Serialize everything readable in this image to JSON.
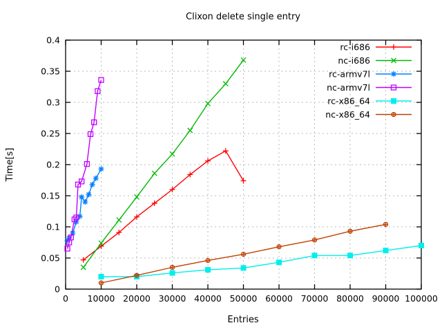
{
  "chart_data": {
    "type": "line",
    "title": "Clixon delete single entry",
    "xlabel": "Entries",
    "ylabel": "Time[s]",
    "xlim": [
      0,
      100000
    ],
    "ylim": [
      0,
      0.4
    ],
    "grid": true,
    "legend_position": "top-right-inside",
    "frame_color": "#000000",
    "grid_color": "#b9b9b9",
    "x_ticks": {
      "values": [
        0,
        10000,
        20000,
        30000,
        40000,
        50000,
        60000,
        70000,
        80000,
        90000,
        100000
      ],
      "labels": [
        "0",
        "10000",
        "20000",
        "30000",
        "40000",
        "50000",
        "60000",
        "70000",
        "80000",
        "90000",
        "100000"
      ]
    },
    "y_ticks": {
      "values": [
        0,
        0.05,
        0.1,
        0.15,
        0.2,
        0.25,
        0.3,
        0.35,
        0.4
      ],
      "labels": [
        "0",
        "0.05",
        "0.1",
        "0.15",
        "0.2",
        "0.25",
        "0.3",
        "0.35",
        "0.4"
      ]
    },
    "series": [
      {
        "name": "rc-i686",
        "color": "#ff0000",
        "marker": "plus",
        "points": [
          [
            5000,
            0.047
          ],
          [
            10000,
            0.069
          ],
          [
            15000,
            0.091
          ],
          [
            20000,
            0.116
          ],
          [
            25000,
            0.138
          ],
          [
            30000,
            0.16
          ],
          [
            35000,
            0.184
          ],
          [
            40000,
            0.206
          ],
          [
            45000,
            0.222
          ],
          [
            50000,
            0.174
          ]
        ]
      },
      {
        "name": "nc-i686",
        "color": "#00b800",
        "marker": "cross",
        "points": [
          [
            5000,
            0.035
          ],
          [
            10000,
            0.074
          ],
          [
            15000,
            0.111
          ],
          [
            20000,
            0.148
          ],
          [
            25000,
            0.186
          ],
          [
            30000,
            0.217
          ],
          [
            35000,
            0.255
          ],
          [
            40000,
            0.298
          ],
          [
            45000,
            0.33
          ],
          [
            50000,
            0.368
          ]
        ]
      },
      {
        "name": "rc-armv7l",
        "color": "#0080ff",
        "marker": "asterisk",
        "points": [
          [
            500,
            0.078
          ],
          [
            1000,
            0.082
          ],
          [
            2000,
            0.09
          ],
          [
            3000,
            0.108
          ],
          [
            4000,
            0.117
          ],
          [
            4500,
            0.148
          ],
          [
            5500,
            0.14
          ],
          [
            6500,
            0.152
          ],
          [
            7500,
            0.168
          ],
          [
            8500,
            0.178
          ],
          [
            10000,
            0.193
          ]
        ]
      },
      {
        "name": "nc-armv7l",
        "color": "#c000ff",
        "marker": "square-open",
        "points": [
          [
            500,
            0.065
          ],
          [
            1000,
            0.075
          ],
          [
            1500,
            0.083
          ],
          [
            2500,
            0.112
          ],
          [
            3000,
            0.115
          ],
          [
            3500,
            0.168
          ],
          [
            4500,
            0.173
          ],
          [
            6000,
            0.201
          ],
          [
            7000,
            0.249
          ],
          [
            8000,
            0.268
          ],
          [
            9000,
            0.318
          ],
          [
            10000,
            0.336
          ]
        ]
      },
      {
        "name": "rc-x86_64",
        "color": "#00eeee",
        "marker": "square-filled",
        "points": [
          [
            10000,
            0.02
          ],
          [
            20000,
            0.02
          ],
          [
            30000,
            0.026
          ],
          [
            40000,
            0.031
          ],
          [
            50000,
            0.034
          ],
          [
            60000,
            0.043
          ],
          [
            70000,
            0.054
          ],
          [
            80000,
            0.054
          ],
          [
            90000,
            0.062
          ],
          [
            100000,
            0.07
          ]
        ]
      },
      {
        "name": "nc-x86_64",
        "color": "#c04000",
        "marker": "circle-plus",
        "points": [
          [
            10000,
            0.01
          ],
          [
            20000,
            0.022
          ],
          [
            30000,
            0.035
          ],
          [
            40000,
            0.046
          ],
          [
            50000,
            0.056
          ],
          [
            60000,
            0.068
          ],
          [
            70000,
            0.079
          ],
          [
            80000,
            0.093
          ],
          [
            90000,
            0.104
          ]
        ]
      }
    ]
  }
}
